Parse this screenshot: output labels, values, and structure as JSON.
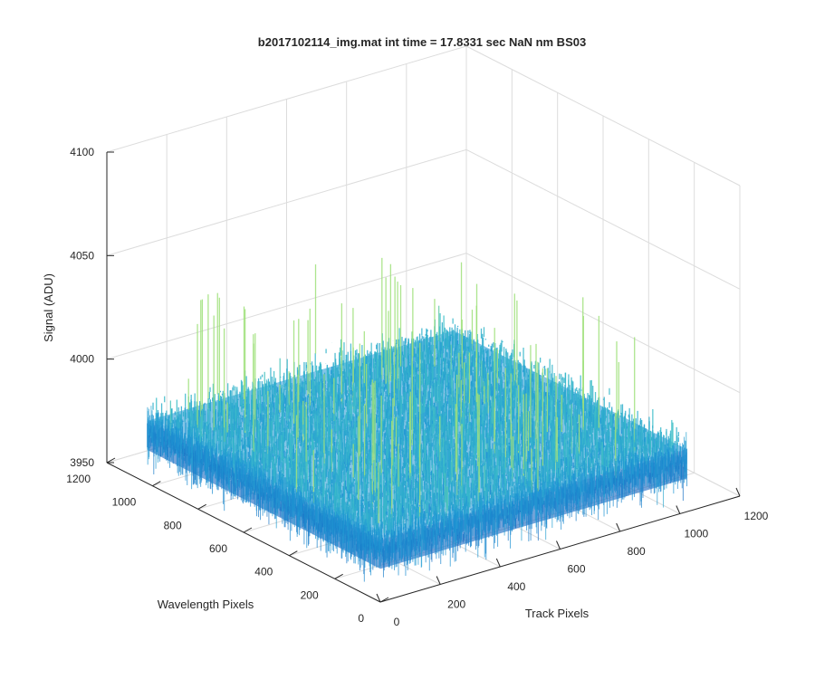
{
  "chart_data": {
    "type": "surface",
    "title": "b2017102114_img.mat int time = 17.8331 sec  NaN nm BS03",
    "xlabel": "Track Pixels",
    "ylabel": "Wavelength Pixels",
    "zlabel": "Signal (ADU)",
    "xlim": [
      0,
      1200
    ],
    "ylim": [
      0,
      1200
    ],
    "zlim": [
      3950,
      4100
    ],
    "x_ticks": [
      "0",
      "200",
      "400",
      "600",
      "800",
      "1000",
      "1200"
    ],
    "y_ticks": [
      "0",
      "200",
      "400",
      "600",
      "800",
      "1000",
      "1200"
    ],
    "z_ticks": [
      "3950",
      "4000",
      "4050",
      "4100"
    ],
    "grid": true,
    "x_extent": [
      1,
      1024
    ],
    "y_extent": [
      1,
      1024
    ],
    "signal_mean": 3980,
    "signal_range": [
      3955,
      4050
    ],
    "colors": {
      "low": "#1565c0",
      "mid": "#1e96d4",
      "high": "#3fc0c8",
      "peak": "#9fe07a",
      "axis": "#262626",
      "grid": "#dcdcdc"
    }
  }
}
